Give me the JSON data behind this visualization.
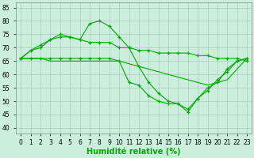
{
  "x": [
    0,
    1,
    2,
    3,
    4,
    5,
    6,
    7,
    8,
    9,
    10,
    11,
    12,
    13,
    14,
    15,
    16,
    17,
    18,
    19,
    20,
    21,
    22,
    23
  ],
  "series": [
    {
      "y": [
        66,
        69,
        71,
        73,
        75,
        74,
        73,
        79,
        80,
        78,
        74,
        70,
        63,
        57,
        53,
        50,
        49,
        47,
        51,
        55,
        57,
        62,
        65,
        66
      ],
      "marker": true
    },
    {
      "y": [
        66,
        69,
        70,
        73,
        74,
        74,
        73,
        72,
        72,
        72,
        70,
        70,
        69,
        69,
        68,
        68,
        68,
        68,
        67,
        67,
        66,
        66,
        66,
        65
      ],
      "marker": true
    },
    {
      "y": [
        66,
        66,
        66,
        65,
        65,
        65,
        65,
        65,
        65,
        65,
        65,
        64,
        63,
        62,
        61,
        60,
        59,
        58,
        57,
        56,
        57,
        58,
        62,
        66
      ],
      "marker": false
    },
    {
      "y": [
        66,
        66,
        66,
        66,
        66,
        66,
        66,
        66,
        66,
        66,
        65,
        57,
        56,
        52,
        50,
        49,
        49,
        46,
        51,
        54,
        58,
        61,
        65,
        66
      ],
      "marker": true
    }
  ],
  "line_color": "#00aa00",
  "marker_char": "+",
  "bg_color": "#cceedd",
  "grid_color": "#aaccbb",
  "xlabel": "Humidité relative (%)",
  "xlim": [
    -0.5,
    23.5
  ],
  "ylim": [
    38,
    87
  ],
  "yticks": [
    40,
    45,
    50,
    55,
    60,
    65,
    70,
    75,
    80,
    85
  ],
  "xticks": [
    0,
    1,
    2,
    3,
    4,
    5,
    6,
    7,
    8,
    9,
    10,
    11,
    12,
    13,
    14,
    15,
    16,
    17,
    18,
    19,
    20,
    21,
    22,
    23
  ],
  "tick_fontsize": 5.5,
  "xlabel_fontsize": 7,
  "marker_size": 3.5,
  "linewidth": 0.8
}
